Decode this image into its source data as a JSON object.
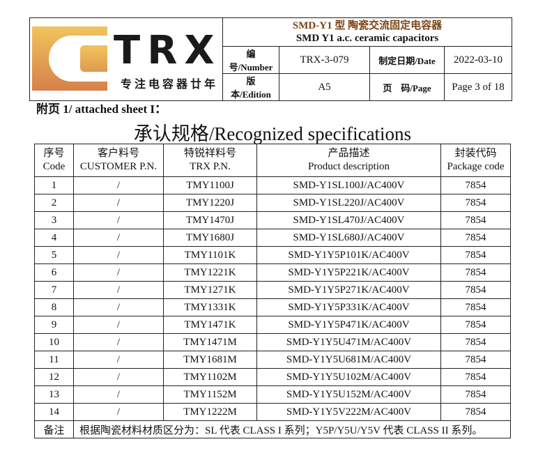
{
  "header": {
    "logo": {
      "brand": "TRX",
      "slogan": "专注电容器廿年"
    },
    "title_cn": "SMD-Y1 型 陶瓷交流固定电容器",
    "title_en": "SMD Y1 a.c. ceramic capacitors",
    "number_label": "编　号/Number",
    "number": "TRX-3-079",
    "date_label": "制定日期/Date",
    "date": "2022-03-10",
    "edition_label": "版　本/Edition",
    "edition": "A5",
    "page_label": "页　码/Page",
    "page": "Page 3 of 18"
  },
  "sheet_label": "附页 1/ attached sheet I：",
  "section_title": "承认规格/Recognized specifications",
  "table": {
    "headers": [
      [
        "序号",
        "Code"
      ],
      [
        "客户料号",
        "CUSTOMER P.N."
      ],
      [
        "特锐祥料号",
        "TRX P.N."
      ],
      [
        "产品描述",
        "Product description"
      ],
      [
        "封装代码",
        "Package code"
      ]
    ],
    "rows": [
      [
        "1",
        "/",
        "TMY1100J",
        "SMD-Y1SL100J/AC400V",
        "7854"
      ],
      [
        "2",
        "/",
        "TMY1220J",
        "SMD-Y1SL220J/AC400V",
        "7854"
      ],
      [
        "3",
        "/",
        "TMY1470J",
        "SMD-Y1SL470J/AC400V",
        "7854"
      ],
      [
        "4",
        "/",
        "TMY1680J",
        "SMD-Y1SL680J/AC400V",
        "7854"
      ],
      [
        "5",
        "/",
        "TMY1101K",
        "SMD-Y1Y5P101K/AC400V",
        "7854"
      ],
      [
        "6",
        "/",
        "TMY1221K",
        "SMD-Y1Y5P221K/AC400V",
        "7854"
      ],
      [
        "7",
        "/",
        "TMY1271K",
        "SMD-Y1Y5P271K/AC400V",
        "7854"
      ],
      [
        "8",
        "/",
        "TMY1331K",
        "SMD-Y1Y5P331K/AC400V",
        "7854"
      ],
      [
        "9",
        "/",
        "TMY1471K",
        "SMD-Y1Y5P471K/AC400V",
        "7854"
      ],
      [
        "10",
        "/",
        "TMY1471M",
        "SMD-Y1Y5U471M/AC400V",
        "7854"
      ],
      [
        "11",
        "/",
        "TMY1681M",
        "SMD-Y1Y5U681M/AC400V",
        "7854"
      ],
      [
        "12",
        "/",
        "TMY1102M",
        "SMD-Y1Y5U102M/AC400V",
        "7854"
      ],
      [
        "13",
        "/",
        "TMY1152M",
        "SMD-Y1Y5U152M/AC400V",
        "7854"
      ],
      [
        "14",
        "/",
        "TMY1222M",
        "SMD-Y1Y5V222M/AC400V",
        "7854"
      ]
    ],
    "note_label": "备注",
    "note": "根据陶瓷材料材质区分为：SL 代表 CLASS I 系列；Y5P/Y5U/Y5V 代表 CLASS II 系列。"
  },
  "colors": {
    "title": "#7a4514",
    "logo_light": "#f0c25a",
    "logo_dark": "#d9834a"
  }
}
